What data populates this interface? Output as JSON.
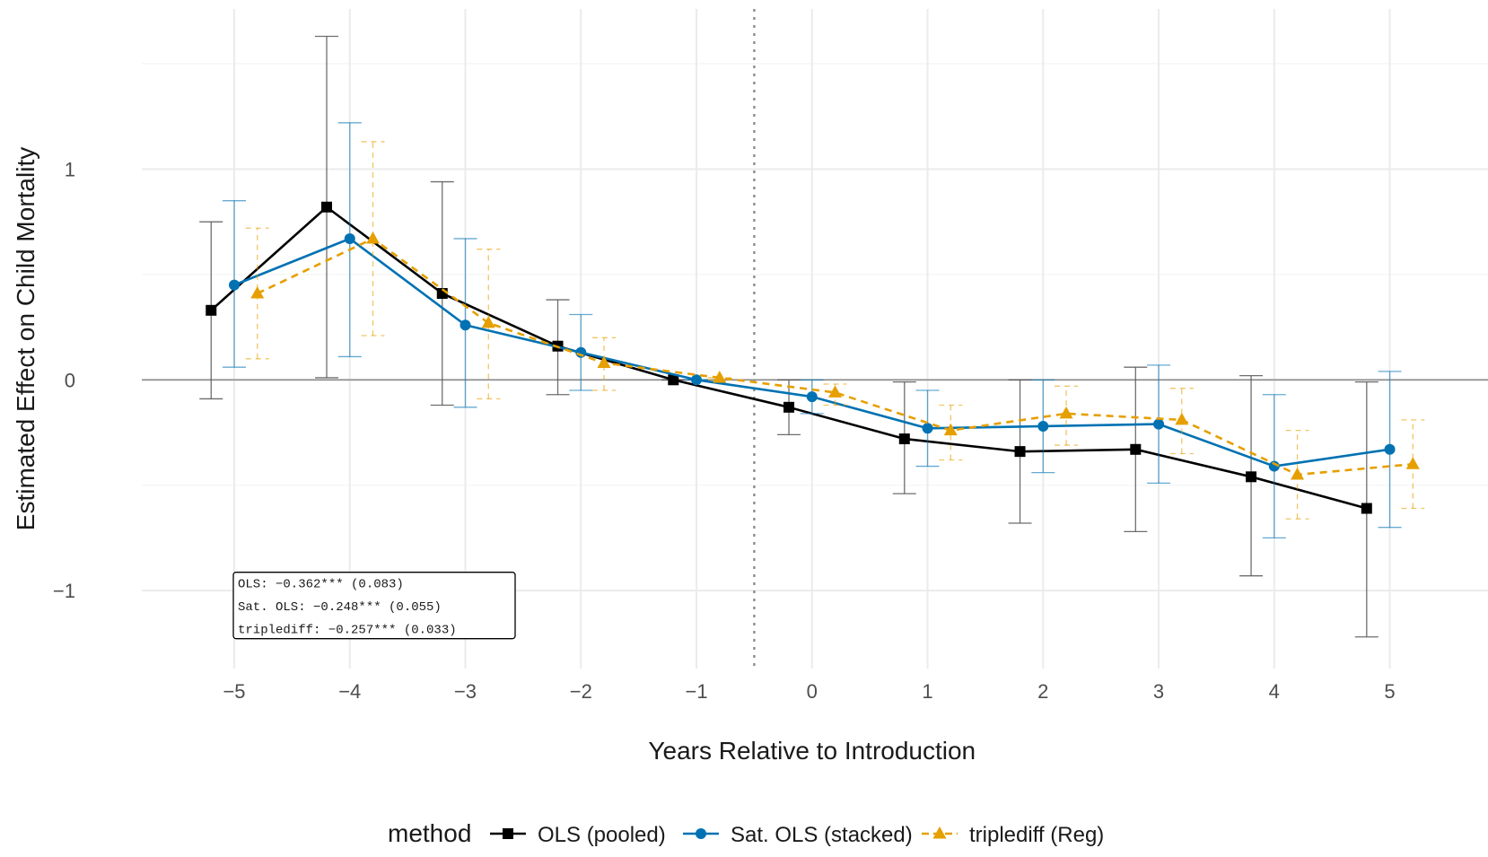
{
  "chart_data": {
    "type": "line",
    "xlabel": "Years Relative to Introduction",
    "ylabel": "Estimated Effect on Child Mortality",
    "x_ticks": [
      -5,
      -4,
      -3,
      -2,
      -1,
      0,
      1,
      2,
      3,
      4,
      5
    ],
    "x_tick_labels": [
      "−5",
      "−4",
      "−3",
      "−2",
      "−1",
      "0",
      "1",
      "2",
      "3",
      "4",
      "5"
    ],
    "y_ticks": [
      -1,
      0,
      1
    ],
    "y_tick_labels": [
      "−1",
      "0",
      "1"
    ],
    "xlim": [
      -5.8,
      5.85
    ],
    "ylim": [
      -1.37,
      1.76
    ],
    "reference_vline": -0.5,
    "reference_hline": 0,
    "grid": true,
    "legend": {
      "title": "method",
      "position": "bottom"
    },
    "series": [
      {
        "name": "OLS (pooled)",
        "color": "#000000",
        "marker": "square",
        "linestyle": "solid",
        "x_offset": -0.2,
        "x": [
          -5,
          -4,
          -3,
          -2,
          -1,
          0,
          1,
          2,
          3,
          4,
          5
        ],
        "y": [
          0.33,
          0.82,
          0.41,
          0.16,
          0.0,
          -0.13,
          -0.28,
          -0.34,
          -0.33,
          -0.46,
          -0.61
        ],
        "lower": [
          -0.09,
          0.01,
          -0.12,
          -0.07,
          0.0,
          -0.26,
          -0.54,
          -0.68,
          -0.72,
          -0.93,
          -1.22
        ],
        "upper": [
          0.75,
          1.63,
          0.94,
          0.38,
          0.0,
          0.0,
          -0.01,
          0.0,
          0.06,
          0.02,
          -0.01
        ]
      },
      {
        "name": "Sat. OLS (stacked)",
        "color": "#0072B2",
        "marker": "circle",
        "linestyle": "solid",
        "x_offset": 0,
        "x": [
          -5,
          -4,
          -3,
          -2,
          -1,
          0,
          1,
          2,
          3,
          4,
          5
        ],
        "y": [
          0.45,
          0.67,
          0.26,
          0.13,
          0.0,
          -0.08,
          -0.23,
          -0.22,
          -0.21,
          -0.41,
          -0.33
        ],
        "lower": [
          0.06,
          0.11,
          -0.13,
          -0.05,
          0.0,
          -0.16,
          -0.41,
          -0.44,
          -0.49,
          -0.75,
          -0.7
        ],
        "upper": [
          0.85,
          1.22,
          0.67,
          0.31,
          0.0,
          0.0,
          -0.05,
          0.0,
          0.07,
          -0.07,
          0.04
        ]
      },
      {
        "name": "triplediff (Reg)",
        "color": "#E69F00",
        "marker": "triangle",
        "linestyle": "dashed",
        "x_offset": 0.2,
        "x": [
          -5,
          -4,
          -3,
          -2,
          -1,
          0,
          1,
          2,
          3,
          4,
          5
        ],
        "y": [
          0.41,
          0.67,
          0.27,
          0.08,
          0.01,
          -0.06,
          -0.24,
          -0.16,
          -0.19,
          -0.45,
          -0.4
        ],
        "lower": [
          0.1,
          0.21,
          -0.09,
          -0.05,
          0.0,
          -0.12,
          -0.38,
          -0.31,
          -0.35,
          -0.66,
          -0.61
        ],
        "upper": [
          0.72,
          1.13,
          0.62,
          0.2,
          0.01,
          -0.02,
          -0.12,
          -0.03,
          -0.04,
          -0.24,
          -0.19
        ]
      }
    ],
    "annotation": {
      "lines": [
        "OLS: −0.362*** (0.083)",
        "Sat. OLS: −0.248*** (0.055)",
        "triplediff: −0.257*** (0.033)"
      ],
      "anchor_x": -5,
      "anchor_y": -0.93
    }
  }
}
